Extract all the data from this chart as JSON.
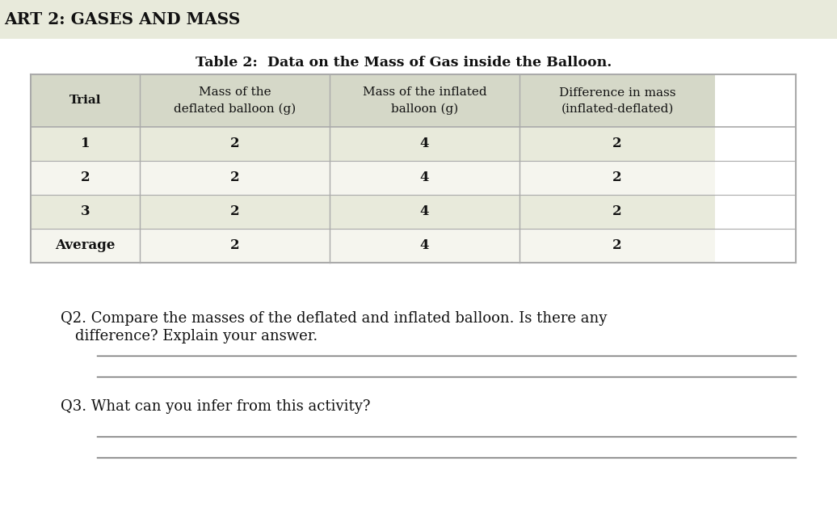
{
  "title_bar_text": "ART 2: GASES AND MASS",
  "title_bar_bg": "#e8eadb",
  "page_bg": "#ffffff",
  "table_title": "Table 2:  Data on the Mass of Gas inside the Balloon.",
  "col_headers": [
    "Trial",
    "Mass of the\ndeflated balloon (g)",
    "Mass of the inflated\nballoon (g)",
    "Difference in mass\n(inflated-deflated)"
  ],
  "rows": [
    [
      "1",
      "2",
      "4",
      "2"
    ],
    [
      "2",
      "2",
      "4",
      "2"
    ],
    [
      "3",
      "2",
      "4",
      "2"
    ],
    [
      "Average",
      "2",
      "4",
      "2"
    ]
  ],
  "header_bg": "#d5d8c8",
  "row_bg_light": "#e8eadb",
  "row_bg_white": "#f5f5ee",
  "table_border": "#aaaaaa",
  "q2_text_line1": "Q2. Compare the masses of the deflated and inflated balloon. Is there any",
  "q2_text_line2": "      difference? Explain your answer.",
  "q3_text": "Q3. What can you infer from this activity?",
  "line_color": "#666666",
  "text_color": "#111111",
  "font_family": "DejaVu Serif"
}
